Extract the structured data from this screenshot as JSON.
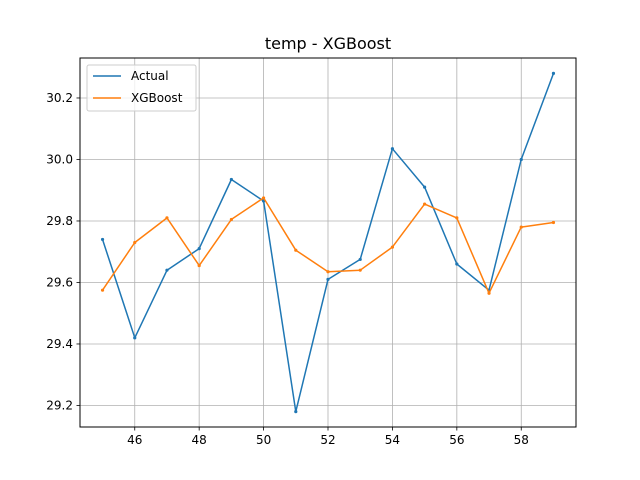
{
  "chart_data": {
    "type": "line",
    "title": "temp - XGBoost",
    "xlabel": "",
    "ylabel": "",
    "x": [
      45,
      46,
      47,
      48,
      49,
      50,
      51,
      52,
      53,
      54,
      55,
      56,
      57,
      58,
      59
    ],
    "series": [
      {
        "name": "Actual",
        "color": "#1f77b4",
        "values": [
          29.74,
          29.42,
          29.64,
          29.71,
          29.935,
          29.865,
          29.18,
          29.61,
          29.675,
          30.035,
          29.91,
          29.66,
          29.575,
          30.0,
          30.28
        ]
      },
      {
        "name": "XGBoost",
        "color": "#ff7f0e",
        "values": [
          29.575,
          29.73,
          29.81,
          29.655,
          29.805,
          29.875,
          29.705,
          29.635,
          29.64,
          29.715,
          29.855,
          29.81,
          29.565,
          29.78,
          29.795
        ]
      }
    ],
    "xlim": [
      44.3,
      59.7
    ],
    "ylim": [
      29.13,
      30.33
    ],
    "x_ticks": [
      "46",
      "48",
      "50",
      "52",
      "54",
      "56",
      "58"
    ],
    "y_ticks": [
      "29.2",
      "29.4",
      "29.6",
      "29.8",
      "30.0",
      "30.2"
    ],
    "grid": true,
    "legend_position": "upper-left"
  }
}
